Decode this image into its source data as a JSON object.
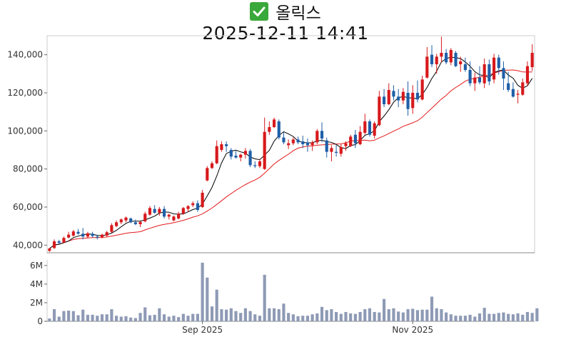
{
  "title": {
    "name": "올릭스",
    "datetime": "2025-12-11 14:41",
    "icon": "check-mark-icon"
  },
  "colors": {
    "up": "#d7191c",
    "down": "#1f5fa8",
    "ma5": "#000000",
    "ma20": "#e31a1c",
    "volume": "#8e9ab5"
  },
  "chart_data": [
    {
      "type": "candlestick",
      "title": "",
      "ylim": [
        36000,
        150000
      ],
      "y_ticks": [
        40000,
        60000,
        80000,
        100000,
        120000,
        140000
      ],
      "y_tick_labels": [
        "40,000",
        "60,000",
        "80,000",
        "100,000",
        "120,000",
        "140,000"
      ],
      "x_ticks": [
        "Sep 2025",
        "Nov 2025"
      ],
      "x_tick_positions": [
        32,
        76
      ],
      "series": [
        {
          "name": "OHLC",
          "ohlc": [
            [
              37000,
              38500,
              36500,
              38200
            ],
            [
              38500,
              43000,
              38000,
              42000
            ],
            [
              42000,
              42800,
              40500,
              41200
            ],
            [
              41500,
              44500,
              41000,
              43800
            ],
            [
              44000,
              47000,
              43500,
              45500
            ],
            [
              45000,
              48000,
              44500,
              47200
            ],
            [
              47000,
              48500,
              45500,
              46000
            ],
            [
              46000,
              49000,
              43000,
              44500
            ],
            [
              44500,
              47000,
              43500,
              46200
            ],
            [
              46000,
              47000,
              44000,
              44800
            ],
            [
              44500,
              45500,
              43000,
              44000
            ],
            [
              44200,
              46000,
              43500,
              45500
            ],
            [
              45000,
              47500,
              44500,
              46800
            ],
            [
              47000,
              51500,
              46500,
              50500
            ],
            [
              50000,
              53000,
              49500,
              52000
            ],
            [
              52000,
              54000,
              51000,
              53500
            ],
            [
              53000,
              55000,
              52000,
              54500
            ],
            [
              54000,
              54500,
              51500,
              52000
            ],
            [
              52000,
              53500,
              50500,
              51000
            ],
            [
              51000,
              52500,
              49500,
              52200
            ],
            [
              52500,
              57500,
              52000,
              56500
            ],
            [
              56000,
              60500,
              55500,
              59500
            ],
            [
              59000,
              61000,
              56500,
              57000
            ],
            [
              57000,
              60000,
              55500,
              59000
            ],
            [
              59000,
              60500,
              54000,
              55000
            ],
            [
              55000,
              56500,
              53500,
              56000
            ],
            [
              53000,
              55500,
              52500,
              55000
            ],
            [
              54000,
              57500,
              53500,
              56500
            ],
            [
              56500,
              60000,
              56000,
              59500
            ],
            [
              59000,
              61000,
              57500,
              60500
            ],
            [
              61000,
              63000,
              60000,
              62000
            ],
            [
              62000,
              63500,
              57500,
              58500
            ],
            [
              60000,
              69000,
              59500,
              67500
            ],
            [
              74000,
              81500,
              73500,
              80500
            ],
            [
              80500,
              84000,
              80000,
              83000
            ],
            [
              83000,
              95000,
              82500,
              92000
            ],
            [
              90000,
              94500,
              89000,
              93000
            ],
            [
              93000,
              94500,
              89000,
              92000
            ],
            [
              90000,
              91000,
              85000,
              86500
            ],
            [
              87000,
              89500,
              85500,
              86000
            ],
            [
              86000,
              88000,
              84000,
              87500
            ],
            [
              87500,
              91000,
              85500,
              89500
            ],
            [
              89500,
              90500,
              81000,
              82000
            ],
            [
              82000,
              84000,
              80500,
              81500
            ],
            [
              81500,
              85000,
              80500,
              84000
            ],
            [
              80000,
              107000,
              79500,
              99500
            ],
            [
              99500,
              105000,
              98000,
              102000
            ],
            [
              102000,
              107000,
              101500,
              106000
            ],
            [
              105000,
              106000,
              95500,
              96500
            ],
            [
              96500,
              99500,
              93000,
              94000
            ],
            [
              92500,
              95500,
              90500,
              93500
            ],
            [
              93500,
              96500,
              92500,
              95500
            ],
            [
              95500,
              97000,
              93000,
              94000
            ],
            [
              94500,
              97500,
              91000,
              93000
            ],
            [
              94000,
              96000,
              89000,
              92500
            ],
            [
              92500,
              95000,
              89500,
              94000
            ],
            [
              94000,
              101000,
              93000,
              100000
            ],
            [
              100000,
              104500,
              94000,
              96000
            ],
            [
              95000,
              96500,
              86000,
              89000
            ],
            [
              89000,
              92500,
              84000,
              91000
            ],
            [
              89000,
              92500,
              86500,
              88500
            ],
            [
              88000,
              93000,
              86500,
              91500
            ],
            [
              92000,
              94500,
              89500,
              93500
            ],
            [
              92000,
              98000,
              91500,
              97000
            ],
            [
              98000,
              100500,
              91000,
              93500
            ],
            [
              93000,
              102500,
              92500,
              99500
            ],
            [
              99000,
              109000,
              98000,
              105000
            ],
            [
              105000,
              106000,
              97000,
              98000
            ],
            [
              97500,
              105000,
              96000,
              104000
            ],
            [
              103000,
              121000,
              102500,
              118000
            ],
            [
              118000,
              122000,
              112500,
              114000
            ],
            [
              114000,
              125000,
              113500,
              121500
            ],
            [
              121000,
              124000,
              116000,
              118000
            ],
            [
              118000,
              122000,
              112500,
              116000
            ],
            [
              116000,
              122500,
              114000,
              120500
            ],
            [
              120000,
              126000,
              108000,
              111500
            ],
            [
              112000,
              124000,
              109000,
              120000
            ],
            [
              120000,
              126500,
              115000,
              116500
            ],
            [
              116500,
              129000,
              116000,
              127000
            ],
            [
              128000,
              144000,
              127500,
              139000
            ],
            [
              140000,
              145000,
              133500,
              135000
            ],
            [
              135000,
              140500,
              130000,
              139000
            ],
            [
              139000,
              149500,
              136000,
              141000
            ],
            [
              141000,
              143000,
              135000,
              136000
            ],
            [
              136000,
              143500,
              134500,
              142500
            ],
            [
              141000,
              142000,
              133500,
              134000
            ],
            [
              135000,
              139000,
              131000,
              136500
            ],
            [
              135000,
              138500,
              131000,
              132000
            ],
            [
              132000,
              136500,
              123500,
              125000
            ],
            [
              125000,
              130500,
              121000,
              128000
            ],
            [
              128000,
              134000,
              124500,
              125500
            ],
            [
              125000,
              138000,
              122500,
              135000
            ],
            [
              135000,
              137500,
              124000,
              126000
            ],
            [
              127000,
              140500,
              125000,
              138500
            ],
            [
              138500,
              140000,
              129500,
              133000
            ],
            [
              133000,
              136500,
              121500,
              127500
            ],
            [
              125000,
              131000,
              120500,
              121500
            ],
            [
              122000,
              125500,
              117500,
              118000
            ],
            [
              119000,
              121500,
              114500,
              119500
            ],
            [
              119000,
              127500,
              118500,
              125500
            ],
            [
              125000,
              136500,
              123500,
              134000
            ],
            [
              133500,
              145500,
              131500,
              141000
            ]
          ]
        },
        {
          "name": "MA5",
          "line": "moving-average-5"
        },
        {
          "name": "MA20",
          "line": "moving-average-20"
        }
      ]
    },
    {
      "type": "bar",
      "title": "",
      "ylim": [
        0,
        6600000
      ],
      "y_ticks": [
        0,
        2000000,
        4000000,
        6000000
      ],
      "y_tick_labels": [
        "0",
        "2M",
        "4M",
        "6M"
      ],
      "x_ticks": [
        "Sep 2025",
        "Nov 2025"
      ],
      "series": [
        {
          "name": "Volume",
          "values": [
            300000,
            1300000,
            500000,
            1100000,
            1150000,
            1100000,
            650000,
            1250000,
            700000,
            700000,
            600000,
            750000,
            750000,
            1300000,
            600000,
            500000,
            550000,
            400000,
            350000,
            900000,
            1500000,
            650000,
            700000,
            1400000,
            750000,
            500000,
            600000,
            450000,
            800000,
            600000,
            800000,
            800000,
            6300000,
            4700000,
            1600000,
            3400000,
            1300000,
            1250000,
            1400000,
            1100000,
            900000,
            1400000,
            1100000,
            750000,
            600000,
            5000000,
            1400000,
            1400000,
            1300000,
            1900000,
            900000,
            750000,
            550000,
            600000,
            600000,
            750000,
            850000,
            1550000,
            1200000,
            1300000,
            1000000,
            800000,
            1000000,
            850000,
            800000,
            1000000,
            1300000,
            1400000,
            1000000,
            950000,
            2400000,
            1300000,
            1400000,
            1050000,
            950000,
            1300000,
            1350000,
            1200000,
            1250000,
            1250000,
            2650000,
            1400000,
            1300000,
            950000,
            750000,
            600000,
            600000,
            600000,
            700000,
            500000,
            850000,
            1450000,
            800000,
            800000,
            900000,
            950000,
            800000,
            750000,
            850000,
            700000,
            1000000,
            900000,
            1400000
          ]
        }
      ]
    }
  ]
}
